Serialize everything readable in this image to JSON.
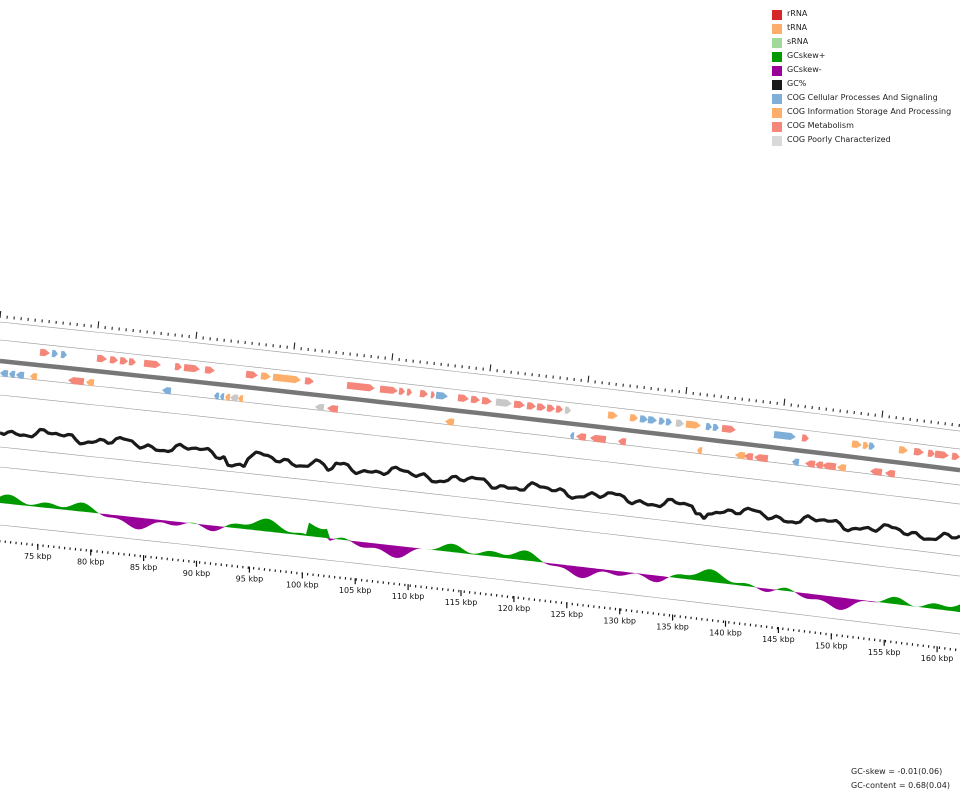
{
  "legend": [
    {
      "label": "rRNA",
      "color": "#d62728"
    },
    {
      "label": "tRNA",
      "color": "#fdae6b"
    },
    {
      "label": "sRNA",
      "color": "#a1d99b"
    },
    {
      "label": "GCskew+",
      "color": "#009900"
    },
    {
      "label": "GCskew-",
      "color": "#990099"
    },
    {
      "label": "GC%",
      "color": "#1a1a1a"
    },
    {
      "label": "COG Cellular Processes And Signaling",
      "color": "#7fafd8"
    },
    {
      "label": "COG Information Storage And Processing",
      "color": "#fdae6b"
    },
    {
      "label": "COG Metabolism",
      "color": "#f4877a"
    },
    {
      "label": "COG Poorly Characterized",
      "color": "#d9d9d9"
    }
  ],
  "axis": {
    "unit": "kbp",
    "labels": [
      "75 kbp",
      "80 kbp",
      "85 kbp",
      "90 kbp",
      "95 kbp",
      "100 kbp",
      "105 kbp",
      "110 kbp",
      "115 kbp",
      "120 kbp",
      "125 kbp",
      "130 kbp",
      "135 kbp",
      "140 kbp",
      "145 kbp",
      "150 kbp",
      "155 kbp",
      "160 kbp"
    ]
  },
  "stats": {
    "gc_skew": "GC-skew = -0.01(0.06)",
    "gc_content": "GC-content = 0.68(0.04)"
  },
  "colors": {
    "backbone": "#777777",
    "track_line": "#999999",
    "gc": "#1a1a1a",
    "skew_pos": "#009900",
    "skew_neg": "#990099"
  }
}
